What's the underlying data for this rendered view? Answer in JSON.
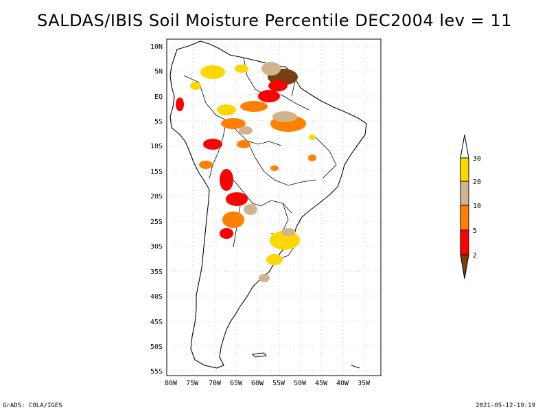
{
  "title": "SALDAS/IBIS Soil Moisture Percentile DEC2004 lev = 11",
  "footer": {
    "left": "GrADS: COLA/IGES",
    "right": "2021-05-12-19:19"
  },
  "axes": {
    "lon_labels": [
      "80W",
      "75W",
      "70W",
      "65W",
      "60W",
      "55W",
      "50W",
      "45W",
      "40W",
      "35W"
    ],
    "lat_labels": [
      "10N",
      "5N",
      "EQ",
      "5S",
      "10S",
      "15S",
      "20S",
      "25S",
      "30S",
      "35S",
      "40S",
      "45S",
      "50S",
      "55S"
    ]
  },
  "legend": {
    "levels": [
      "2",
      "5",
      "10",
      "20",
      "30"
    ],
    "colors": {
      "below2": "#7a3f10",
      "2to5": "#ff0000",
      "5to10": "#ff8000",
      "10to20": "#d2b48c",
      "20to30": "#ffd700",
      "above30": "#ffffff"
    }
  }
}
